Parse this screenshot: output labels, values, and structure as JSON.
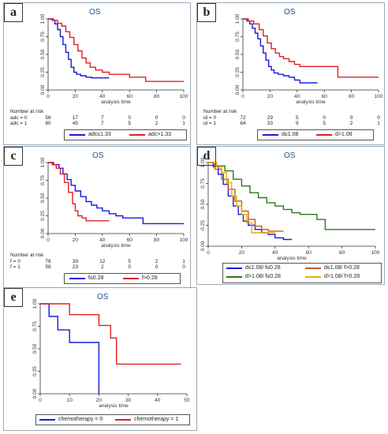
{
  "chart_data": [
    {
      "panel": "a",
      "type": "line",
      "title": "OS",
      "xlabel": "analysis time",
      "xlim": [
        0,
        100
      ],
      "ylim": [
        0,
        1
      ],
      "xticks": [
        "0",
        "20",
        "40",
        "60",
        "80",
        "100"
      ],
      "yticks": [
        "0.00",
        "0.25",
        "0.50",
        "0.75",
        "1.00"
      ],
      "series": [
        {
          "name": "adc≤1.33",
          "color": "#1a1adf",
          "x": [
            0,
            3,
            5,
            7,
            9,
            11,
            13,
            15,
            17,
            19,
            21,
            24,
            28,
            32,
            36,
            40,
            45
          ],
          "y": [
            1.0,
            0.98,
            0.93,
            0.85,
            0.75,
            0.64,
            0.53,
            0.43,
            0.32,
            0.25,
            0.22,
            0.2,
            0.18,
            0.17,
            0.17,
            0.17,
            0.17
          ]
        },
        {
          "name": "adc>1.33",
          "color": "#e02020",
          "x": [
            0,
            4,
            7,
            10,
            13,
            16,
            19,
            22,
            25,
            28,
            31,
            35,
            40,
            45,
            50,
            55,
            60,
            67,
            72,
            85,
            100
          ],
          "y": [
            1.0,
            0.98,
            0.94,
            0.9,
            0.82,
            0.74,
            0.64,
            0.55,
            0.45,
            0.38,
            0.32,
            0.28,
            0.25,
            0.22,
            0.22,
            0.22,
            0.18,
            0.18,
            0.12,
            0.12,
            0.12
          ]
        }
      ],
      "risk_table": {
        "header": "Number at risk",
        "rows": [
          {
            "label": "adc = 0",
            "values": [
              "56",
              "17",
              "7",
              "0",
              "0",
              "0"
            ]
          },
          {
            "label": "adc = 1",
            "values": [
              "80",
              "45",
              "7",
              "5",
              "2",
              "1"
            ]
          }
        ]
      }
    },
    {
      "panel": "b",
      "type": "line",
      "title": "OS",
      "xlabel": "analysis time",
      "xlim": [
        0,
        100
      ],
      "ylim": [
        0,
        1
      ],
      "xticks": [
        "0",
        "20",
        "40",
        "60",
        "80",
        "100"
      ],
      "yticks": [
        "0.00",
        "0.25",
        "0.50",
        "0.75",
        "1.00"
      ],
      "series": [
        {
          "name": "d≤1.08",
          "color": "#1a1adf",
          "x": [
            0,
            3,
            5,
            7,
            9,
            11,
            13,
            15,
            17,
            19,
            21,
            23,
            26,
            30,
            34,
            38,
            42,
            48,
            55
          ],
          "y": [
            1.0,
            0.97,
            0.93,
            0.87,
            0.8,
            0.72,
            0.62,
            0.52,
            0.42,
            0.33,
            0.28,
            0.24,
            0.22,
            0.2,
            0.18,
            0.14,
            0.1,
            0.1,
            0.1
          ]
        },
        {
          "name": "d>1.08",
          "color": "#e02020",
          "x": [
            0,
            4,
            8,
            12,
            15,
            18,
            21,
            24,
            27,
            30,
            34,
            38,
            42,
            48,
            55,
            62,
            70,
            80,
            90,
            100
          ],
          "y": [
            1.0,
            0.97,
            0.93,
            0.85,
            0.76,
            0.66,
            0.58,
            0.52,
            0.47,
            0.44,
            0.4,
            0.36,
            0.33,
            0.33,
            0.33,
            0.33,
            0.18,
            0.18,
            0.18,
            0.18
          ]
        }
      ],
      "risk_table": {
        "header": "Number at risk",
        "rows": [
          {
            "label": "id = 0",
            "values": [
              "72",
              "29",
              "5",
              "0",
              "0",
              "0"
            ]
          },
          {
            "label": "id = 1",
            "values": [
              "64",
              "33",
              "9",
              "5",
              "2",
              "1"
            ]
          }
        ]
      }
    },
    {
      "panel": "c",
      "type": "line",
      "title": "OS",
      "xlabel": "analysis time",
      "xlim": [
        0,
        100
      ],
      "ylim": [
        0,
        1
      ],
      "xticks": [
        "0",
        "20",
        "40",
        "60",
        "80",
        "100"
      ],
      "yticks": [
        "0.00",
        "0.25",
        "0.50",
        "0.75",
        "1.00"
      ],
      "series": [
        {
          "name": "f≤0.28",
          "color": "#1a1adf",
          "x": [
            0,
            4,
            8,
            11,
            14,
            17,
            20,
            24,
            28,
            32,
            36,
            40,
            45,
            50,
            55,
            60,
            65,
            70,
            80,
            90,
            100
          ],
          "y": [
            1.0,
            0.97,
            0.92,
            0.84,
            0.76,
            0.68,
            0.6,
            0.52,
            0.45,
            0.4,
            0.36,
            0.32,
            0.28,
            0.25,
            0.22,
            0.22,
            0.22,
            0.14,
            0.14,
            0.14,
            0.14
          ]
        },
        {
          "name": "f>0.28",
          "color": "#e02020",
          "x": [
            0,
            3,
            6,
            9,
            12,
            15,
            18,
            20,
            22,
            25,
            28,
            32,
            36,
            40,
            45
          ],
          "y": [
            1.0,
            0.97,
            0.92,
            0.84,
            0.72,
            0.58,
            0.42,
            0.32,
            0.25,
            0.22,
            0.18,
            0.18,
            0.18,
            0.18,
            0.18
          ]
        }
      ],
      "risk_table": {
        "header": "Number at risk",
        "rows": [
          {
            "label": "f = 0",
            "values": [
              "78",
              "39",
              "12",
              "5",
              "2",
              "1"
            ]
          },
          {
            "label": "f = 1",
            "values": [
              "58",
              "23",
              "2",
              "0",
              "0",
              "0"
            ]
          }
        ]
      }
    },
    {
      "panel": "d",
      "type": "line",
      "title": "OS",
      "xlabel": "analysis time",
      "xlim": [
        0,
        100
      ],
      "ylim": [
        0,
        1
      ],
      "xticks": [
        "0",
        "20",
        "40",
        "60",
        "80",
        "100"
      ],
      "yticks": [
        "0.00",
        "0.25",
        "0.50",
        "0.75",
        "1.00"
      ],
      "series": [
        {
          "name": "d≤1.08/ f≤0.28",
          "color": "#1a1adf",
          "x": [
            0,
            3,
            6,
            9,
            12,
            15,
            18,
            21,
            24,
            28,
            32,
            36,
            40,
            45,
            50
          ],
          "y": [
            1.0,
            0.95,
            0.86,
            0.74,
            0.6,
            0.48,
            0.38,
            0.3,
            0.25,
            0.2,
            0.16,
            0.14,
            0.1,
            0.08,
            0.08
          ]
        },
        {
          "name": "d≤1.08/ f>0.28",
          "color": "#c85a1a",
          "x": [
            0,
            4,
            8,
            12,
            16,
            20,
            24,
            28,
            32,
            36,
            40,
            45
          ],
          "y": [
            1.0,
            0.92,
            0.8,
            0.68,
            0.54,
            0.42,
            0.32,
            0.24,
            0.2,
            0.18,
            0.18,
            0.18
          ]
        },
        {
          "name": "d>1.08/ f≤0.28",
          "color": "#2a7a1a",
          "x": [
            0,
            5,
            10,
            15,
            20,
            25,
            30,
            35,
            40,
            45,
            50,
            55,
            60,
            65,
            70,
            80,
            90,
            100
          ],
          "y": [
            1.0,
            0.96,
            0.9,
            0.8,
            0.72,
            0.64,
            0.58,
            0.52,
            0.48,
            0.44,
            0.4,
            0.38,
            0.38,
            0.32,
            0.2,
            0.2,
            0.2,
            0.2
          ]
        },
        {
          "name": "d>1.08/ f>0.28",
          "color": "#e0b000",
          "x": [
            0,
            5,
            8,
            11,
            14,
            17,
            20,
            23,
            26,
            29,
            32,
            36,
            40
          ],
          "y": [
            1.0,
            0.95,
            0.88,
            0.76,
            0.6,
            0.48,
            0.38,
            0.28,
            0.16,
            0.16,
            0.16,
            0.16,
            0.16
          ]
        }
      ]
    },
    {
      "panel": "e",
      "type": "line",
      "title": "OS",
      "xlabel": "analysis time",
      "xlim": [
        0,
        50
      ],
      "ylim": [
        0,
        1
      ],
      "xticks": [
        "0",
        "10",
        "20",
        "30",
        "40",
        "50"
      ],
      "yticks": [
        "0.00",
        "0.25",
        "0.50",
        "0.75",
        "1.00"
      ],
      "series": [
        {
          "name": "chemotherapy = 0",
          "color": "#1a1adf",
          "x": [
            0,
            3,
            3,
            6,
            6,
            10,
            10,
            20,
            20
          ],
          "y": [
            1.0,
            1.0,
            0.86,
            0.86,
            0.71,
            0.71,
            0.57,
            0.57,
            0.0
          ]
        },
        {
          "name": "chemotherapy = 1",
          "color": "#e02020",
          "x": [
            0,
            10,
            10,
            20,
            20,
            24,
            24,
            26,
            26,
            48
          ],
          "y": [
            1.0,
            1.0,
            0.88,
            0.88,
            0.76,
            0.76,
            0.62,
            0.62,
            0.33,
            0.33
          ]
        }
      ]
    }
  ]
}
